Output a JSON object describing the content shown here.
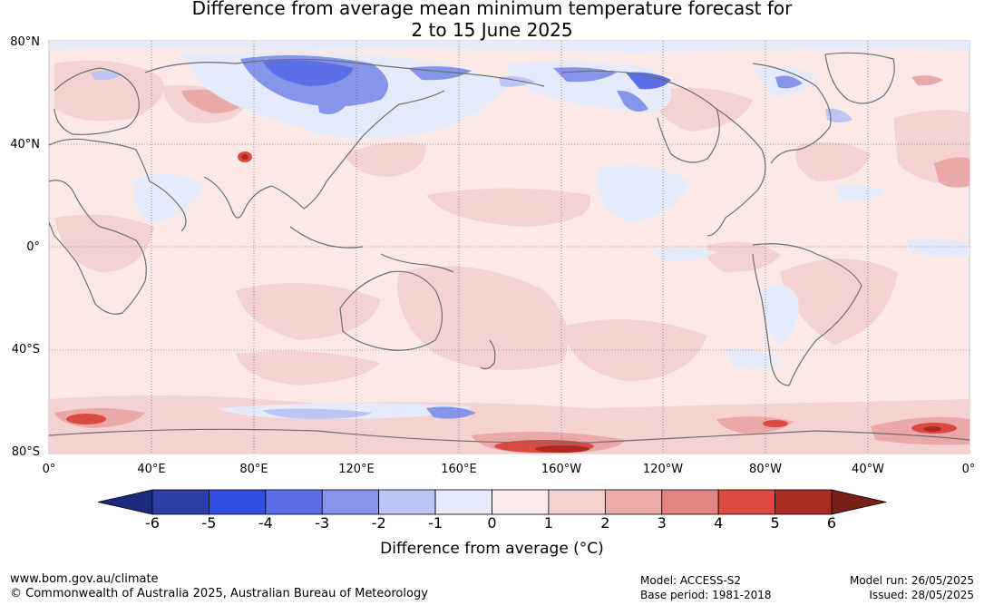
{
  "title_line1": "Difference from average mean minimum temperature forecast for",
  "title_line2": "2 to 15 June 2025",
  "map": {
    "lat_labels": [
      "80°N",
      "40°N",
      "0°",
      "40°S",
      "80°S"
    ],
    "lon_labels": [
      "0°",
      "40°E",
      "80°E",
      "120°E",
      "160°E",
      "160°W",
      "120°W",
      "80°W",
      "40°W",
      "0°"
    ]
  },
  "colorbar": {
    "ticks": [
      "-6",
      "-5",
      "-4",
      "-3",
      "-2",
      "-1",
      "0",
      "1",
      "2",
      "3",
      "4",
      "5",
      "6"
    ],
    "colors": [
      "#2a3ea6",
      "#2f4ee0",
      "#5b70e6",
      "#8596ea",
      "#bcc5f3",
      "#e6ebfb",
      "#fdecec",
      "#f5d0d0",
      "#ecaaa8",
      "#e48480",
      "#da4a40",
      "#ab2a22"
    ],
    "low_extend_color": "#1c2a7c",
    "high_extend_color": "#7a1e18",
    "title": "Difference from average (°C)"
  },
  "footer": {
    "website": "www.bom.gov.au/climate",
    "copyright": "© Commonwealth of Australia 2025, Australian Bureau of Meteorology",
    "model": "Model: ACCESS-S2",
    "base_period": "Base period: 1981-2018",
    "model_run": "Model run: 26/05/2025",
    "issued": "Issued: 28/05/2025"
  }
}
